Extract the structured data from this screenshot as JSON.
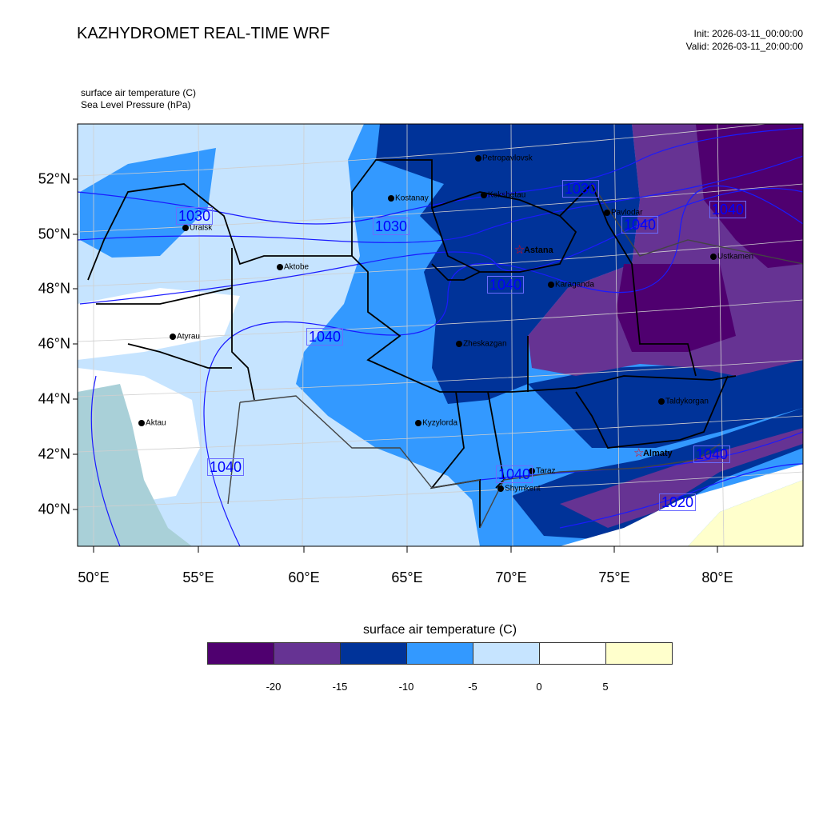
{
  "header": {
    "title": "KAZHYDROMET REAL-TIME WRF",
    "init": "Init: 2026-03-11_00:00:00",
    "valid": "Valid: 2026-03-11_20:00:00",
    "field1": "surface air temperature   (C)",
    "field2": "Sea Level Pressure   (hPa)"
  },
  "axes": {
    "lon_ticks": [
      "50°E",
      "55°E",
      "60°E",
      "65°E",
      "70°E",
      "75°E",
      "80°E"
    ],
    "lat_ticks": [
      "52°N",
      "50°N",
      "48°N",
      "46°N",
      "44°N",
      "42°N",
      "40°N"
    ]
  },
  "colorbar": {
    "title": "surface air temperature (C)",
    "colors": [
      "#4f006f",
      "#663393",
      "#003399",
      "#3399ff",
      "#c6e4ff",
      "#ffffff",
      "#ffffcc"
    ],
    "labels": [
      "-20",
      "-15",
      "-10",
      "-5",
      "0",
      "5"
    ]
  },
  "cities": [
    {
      "name": "Petropavlovsk",
      "lon": 68.5,
      "lat": 52.76,
      "capital": false
    },
    {
      "name": "Kokshetau",
      "lon": 68.77,
      "lat": 51.42,
      "capital": false
    },
    {
      "name": "Kostanay",
      "lon": 64.31,
      "lat": 51.3,
      "capital": false
    },
    {
      "name": "Uralsk",
      "lon": 54.42,
      "lat": 50.23,
      "capital": false
    },
    {
      "name": "Aktobe",
      "lon": 58.96,
      "lat": 48.8,
      "capital": false
    },
    {
      "name": "Astana",
      "lon": 70.5,
      "lat": 49.41,
      "capital": true
    },
    {
      "name": "Pavlodar",
      "lon": 74.69,
      "lat": 50.78,
      "capital": false
    },
    {
      "name": "Ustkamen",
      "lon": 79.81,
      "lat": 49.18,
      "capital": false
    },
    {
      "name": "Karaganda",
      "lon": 72.0,
      "lat": 48.16,
      "capital": false
    },
    {
      "name": "Zheskazgan",
      "lon": 67.58,
      "lat": 46.01,
      "capital": false
    },
    {
      "name": "Atyrau",
      "lon": 53.81,
      "lat": 46.27,
      "capital": false
    },
    {
      "name": "Aktau",
      "lon": 52.31,
      "lat": 43.13,
      "capital": false
    },
    {
      "name": "Kyzylorda",
      "lon": 65.62,
      "lat": 43.13,
      "capital": false
    },
    {
      "name": "Taldykorgan",
      "lon": 77.31,
      "lat": 43.92,
      "capital": false
    },
    {
      "name": "Almaty",
      "lon": 76.23,
      "lat": 42.03,
      "capital": true
    },
    {
      "name": "Taraz",
      "lon": 71.08,
      "lat": 41.39,
      "capital": false
    },
    {
      "name": "Shymkent",
      "lon": 69.58,
      "lat": 40.75,
      "capital": false
    }
  ],
  "pressure_labels": [
    "1030",
    "1030",
    "1030",
    "1040",
    "1040",
    "1040",
    "1040",
    "1040",
    "1040",
    "1040",
    "1020"
  ]
}
